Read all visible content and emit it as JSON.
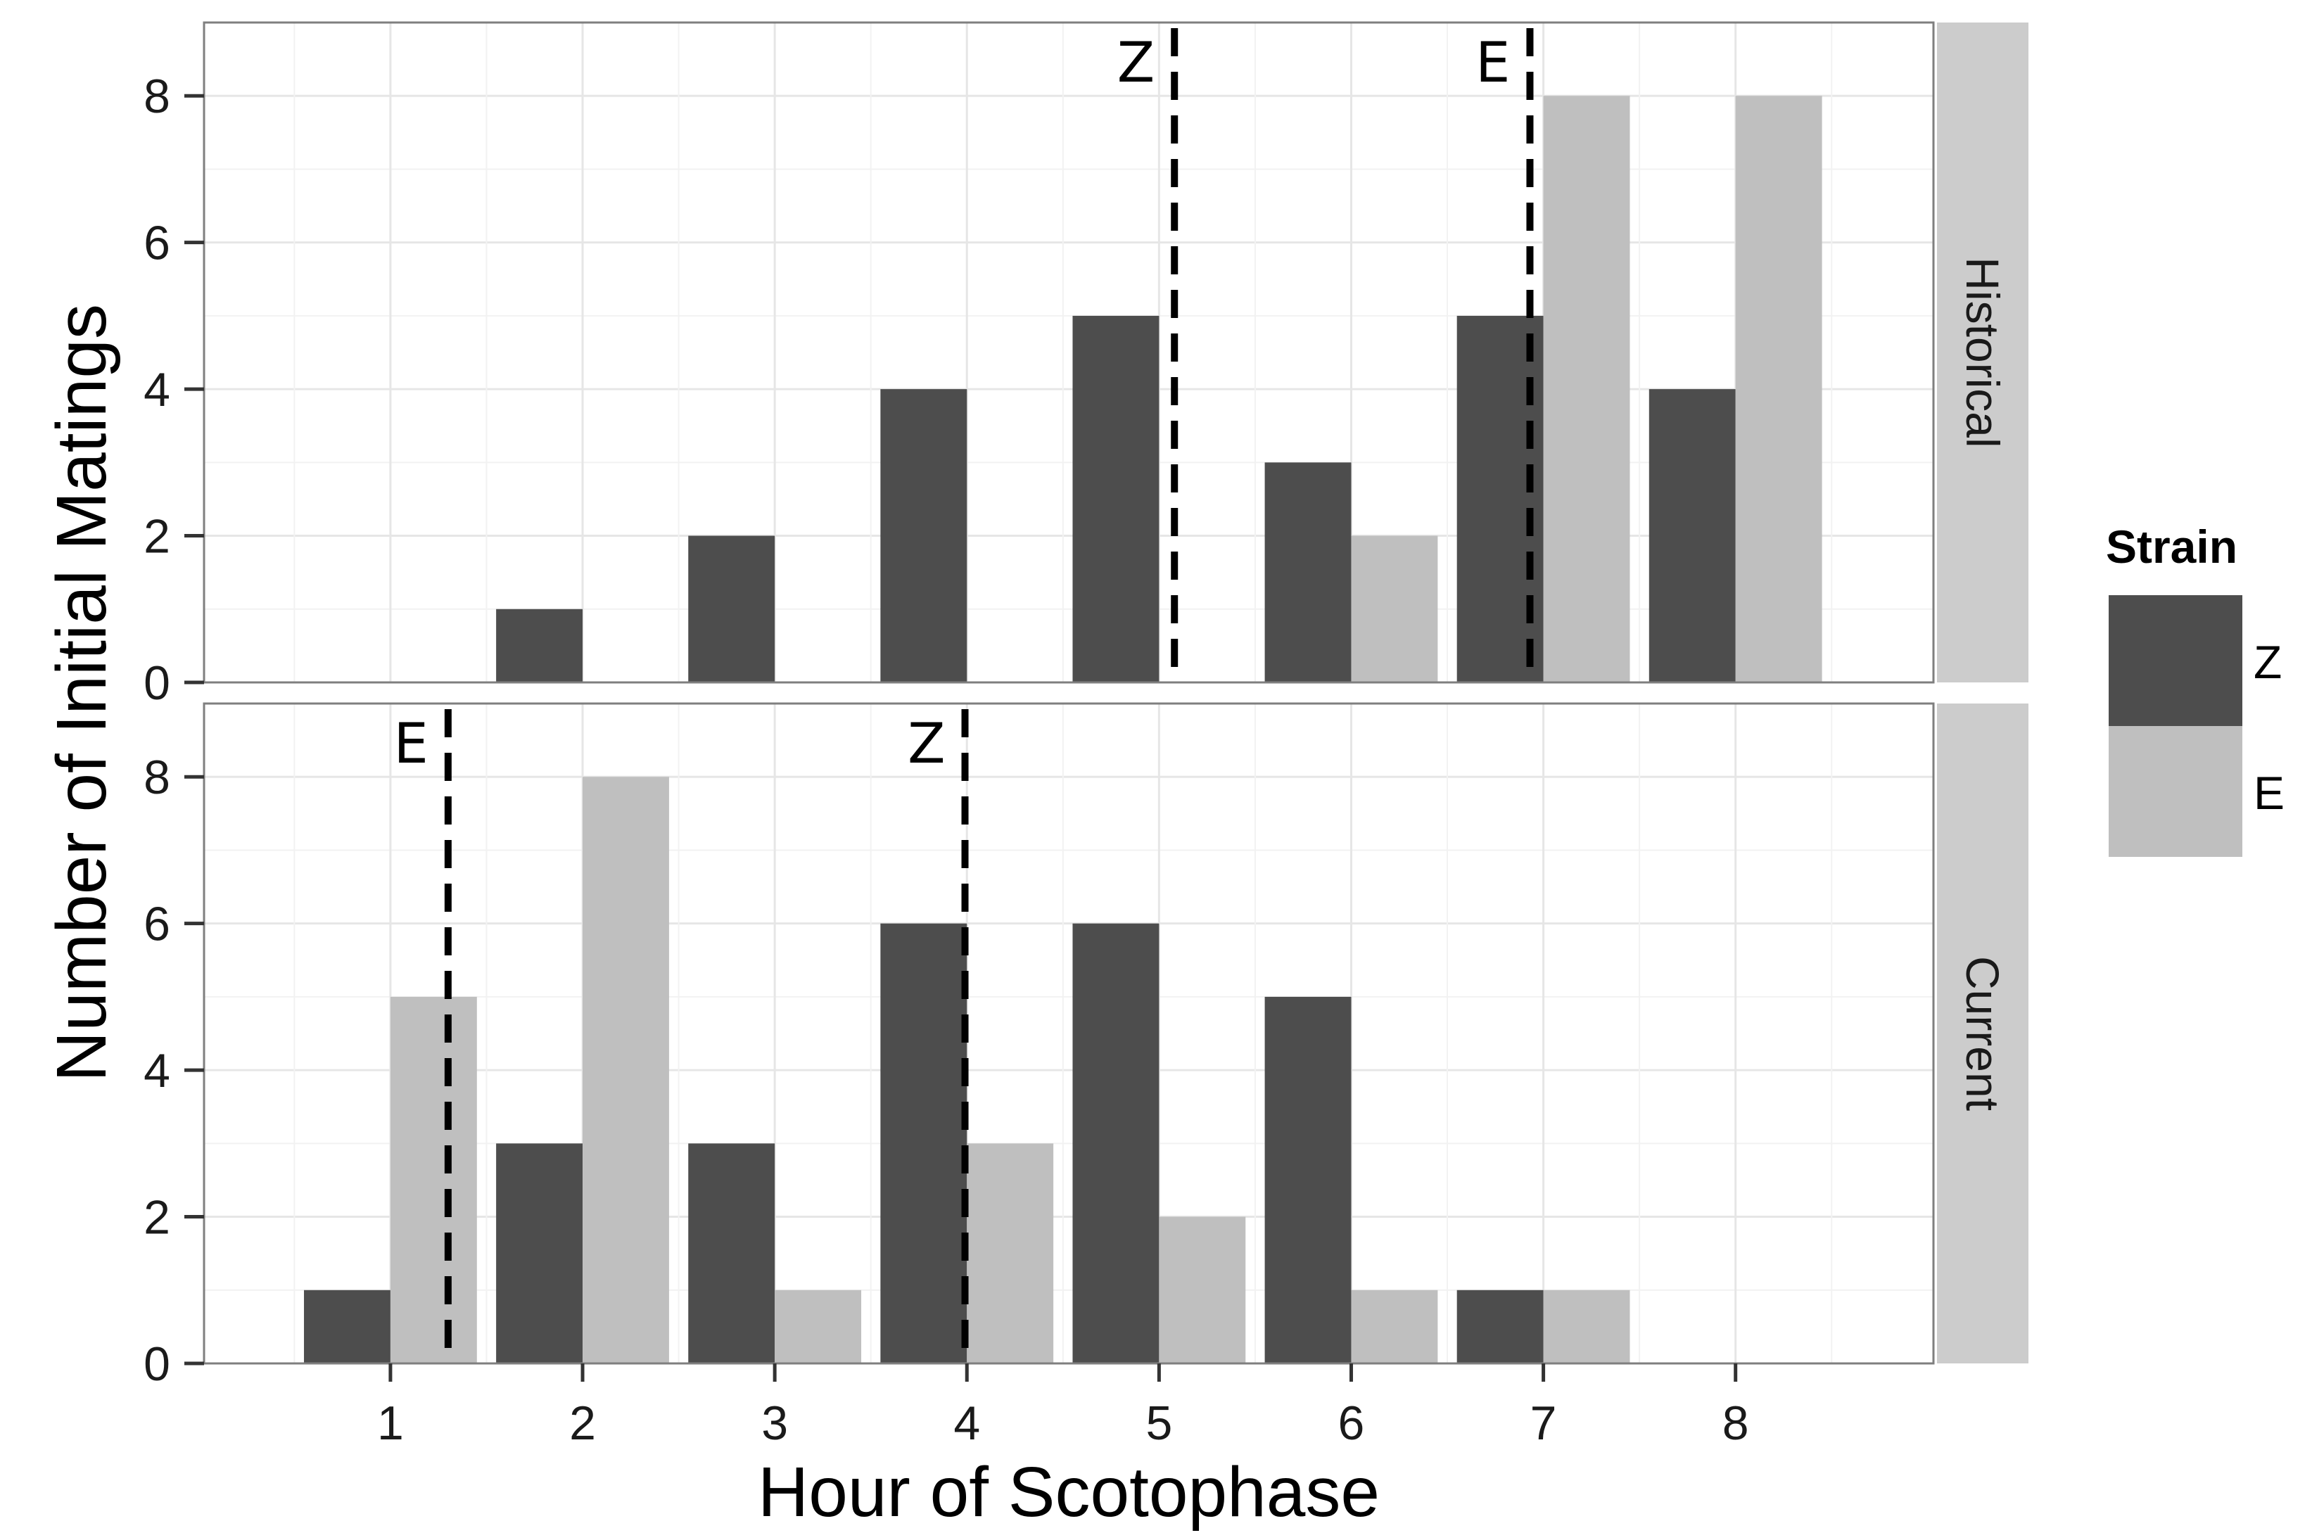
{
  "chart_data": {
    "type": "bar",
    "xlabel": "Hour of Scotophase",
    "ylabel": "Number of Initial Matings",
    "x_categories": [
      "1",
      "2",
      "3",
      "4",
      "5",
      "6",
      "7",
      "8"
    ],
    "y_ticks": [
      "0",
      "2",
      "4",
      "6",
      "8"
    ],
    "ylim": [
      0,
      9
    ],
    "grid": true,
    "legend": {
      "title": "Strain",
      "position": "right",
      "entries": [
        {
          "name": "Z",
          "color": "#4d4d4d"
        },
        {
          "name": "E",
          "color": "#bfbfbf"
        }
      ]
    },
    "panels": [
      {
        "label": "Historical",
        "series": [
          {
            "name": "Z",
            "values": [
              0,
              1,
              2,
              4,
              5,
              3,
              5,
              4
            ]
          },
          {
            "name": "E",
            "values": [
              0,
              0,
              0,
              0,
              0,
              2,
              8,
              8
            ]
          }
        ],
        "vlines": [
          {
            "label": "Z",
            "x": 5.08
          },
          {
            "label": "E",
            "x": 6.93
          }
        ]
      },
      {
        "label": "Current",
        "series": [
          {
            "name": "Z",
            "values": [
              1,
              3,
              3,
              6,
              6,
              5,
              1,
              0
            ]
          },
          {
            "name": "E",
            "values": [
              5,
              8,
              1,
              3,
              2,
              1,
              1,
              0
            ]
          }
        ],
        "vlines": [
          {
            "label": "E",
            "x": 1.3
          },
          {
            "label": "Z",
            "x": 3.99
          }
        ]
      }
    ]
  }
}
